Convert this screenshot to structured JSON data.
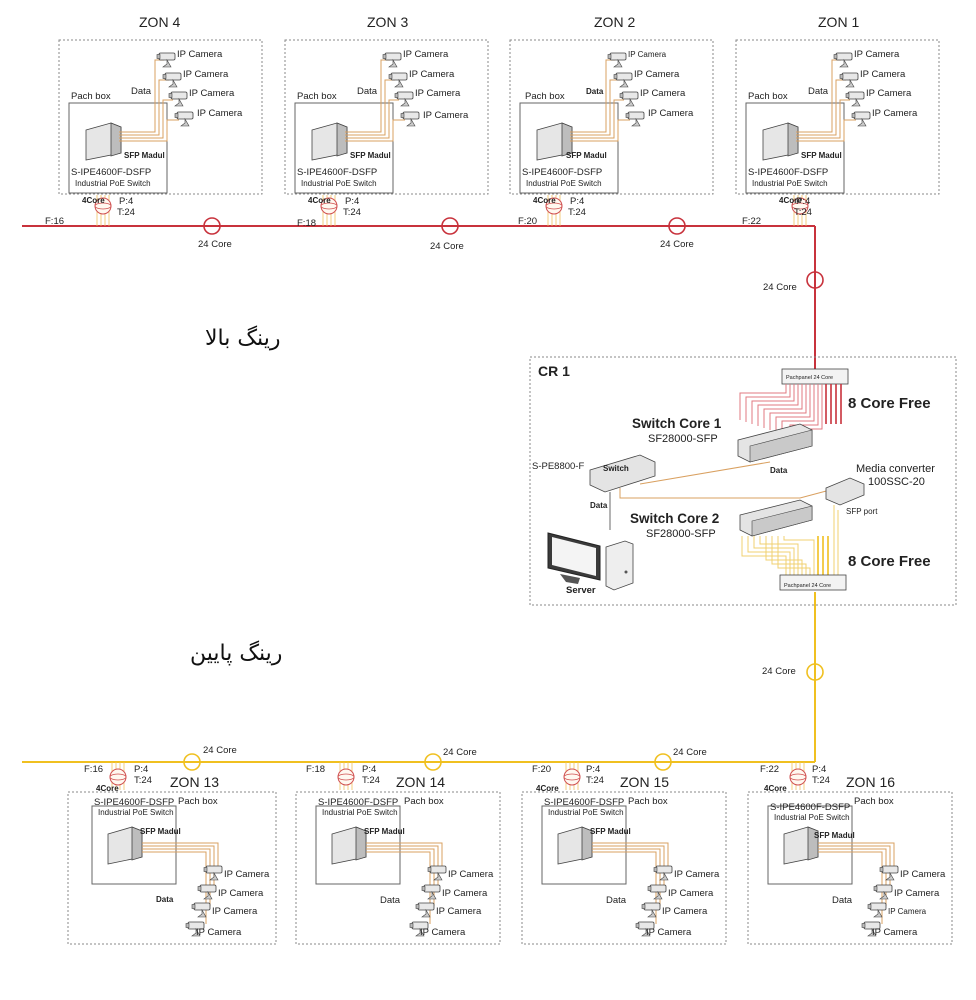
{
  "labels": {
    "upper_ring": "رینگ بالا",
    "lower_ring": "رینگ پایین",
    "core_24": "24 Core",
    "core_4": "4Core",
    "p4": "P:4",
    "t24": "T:24",
    "ip_camera": "IP Camera",
    "data": "Data",
    "pach_box": "Pach box",
    "sfp_module": "SFP Madul",
    "zone_switch_model": "S-IPE4600F-DSFP",
    "zone_switch_desc": "Industrial PoE Switch"
  },
  "zones_top": [
    {
      "name": "ZON 4",
      "fiber": "F:16"
    },
    {
      "name": "ZON 3",
      "fiber": "F:18"
    },
    {
      "name": "ZON 2",
      "fiber": "F:20"
    },
    {
      "name": "ZON 1",
      "fiber": "F:22"
    }
  ],
  "zones_bottom": [
    {
      "name": "ZON 13",
      "fiber": "F:16"
    },
    {
      "name": "ZON 14",
      "fiber": "F:18"
    },
    {
      "name": "ZON 15",
      "fiber": "F:20"
    },
    {
      "name": "ZON 16",
      "fiber": "F:22"
    }
  ],
  "cr": {
    "title": "CR 1",
    "patch_panel": "Pachpanel 24 Core",
    "free_top": "8 Core Free",
    "free_bottom": "8 Core Free",
    "core1_title": "Switch Core 1",
    "core1_model": "SF28000-SFP",
    "core2_title": "Switch Core 2",
    "core2_model": "SF28000-SFP",
    "switch_model": "S-PE8800-F",
    "switch_label": "Switch",
    "data": "Data",
    "media_converter": "Media converter",
    "media_model": "100SSC-20",
    "sfp_port": "SFP port",
    "server": "Server"
  },
  "colors": {
    "upper_ring": "#c8323c",
    "lower_ring": "#f0c020",
    "cable": "#d9a060"
  }
}
